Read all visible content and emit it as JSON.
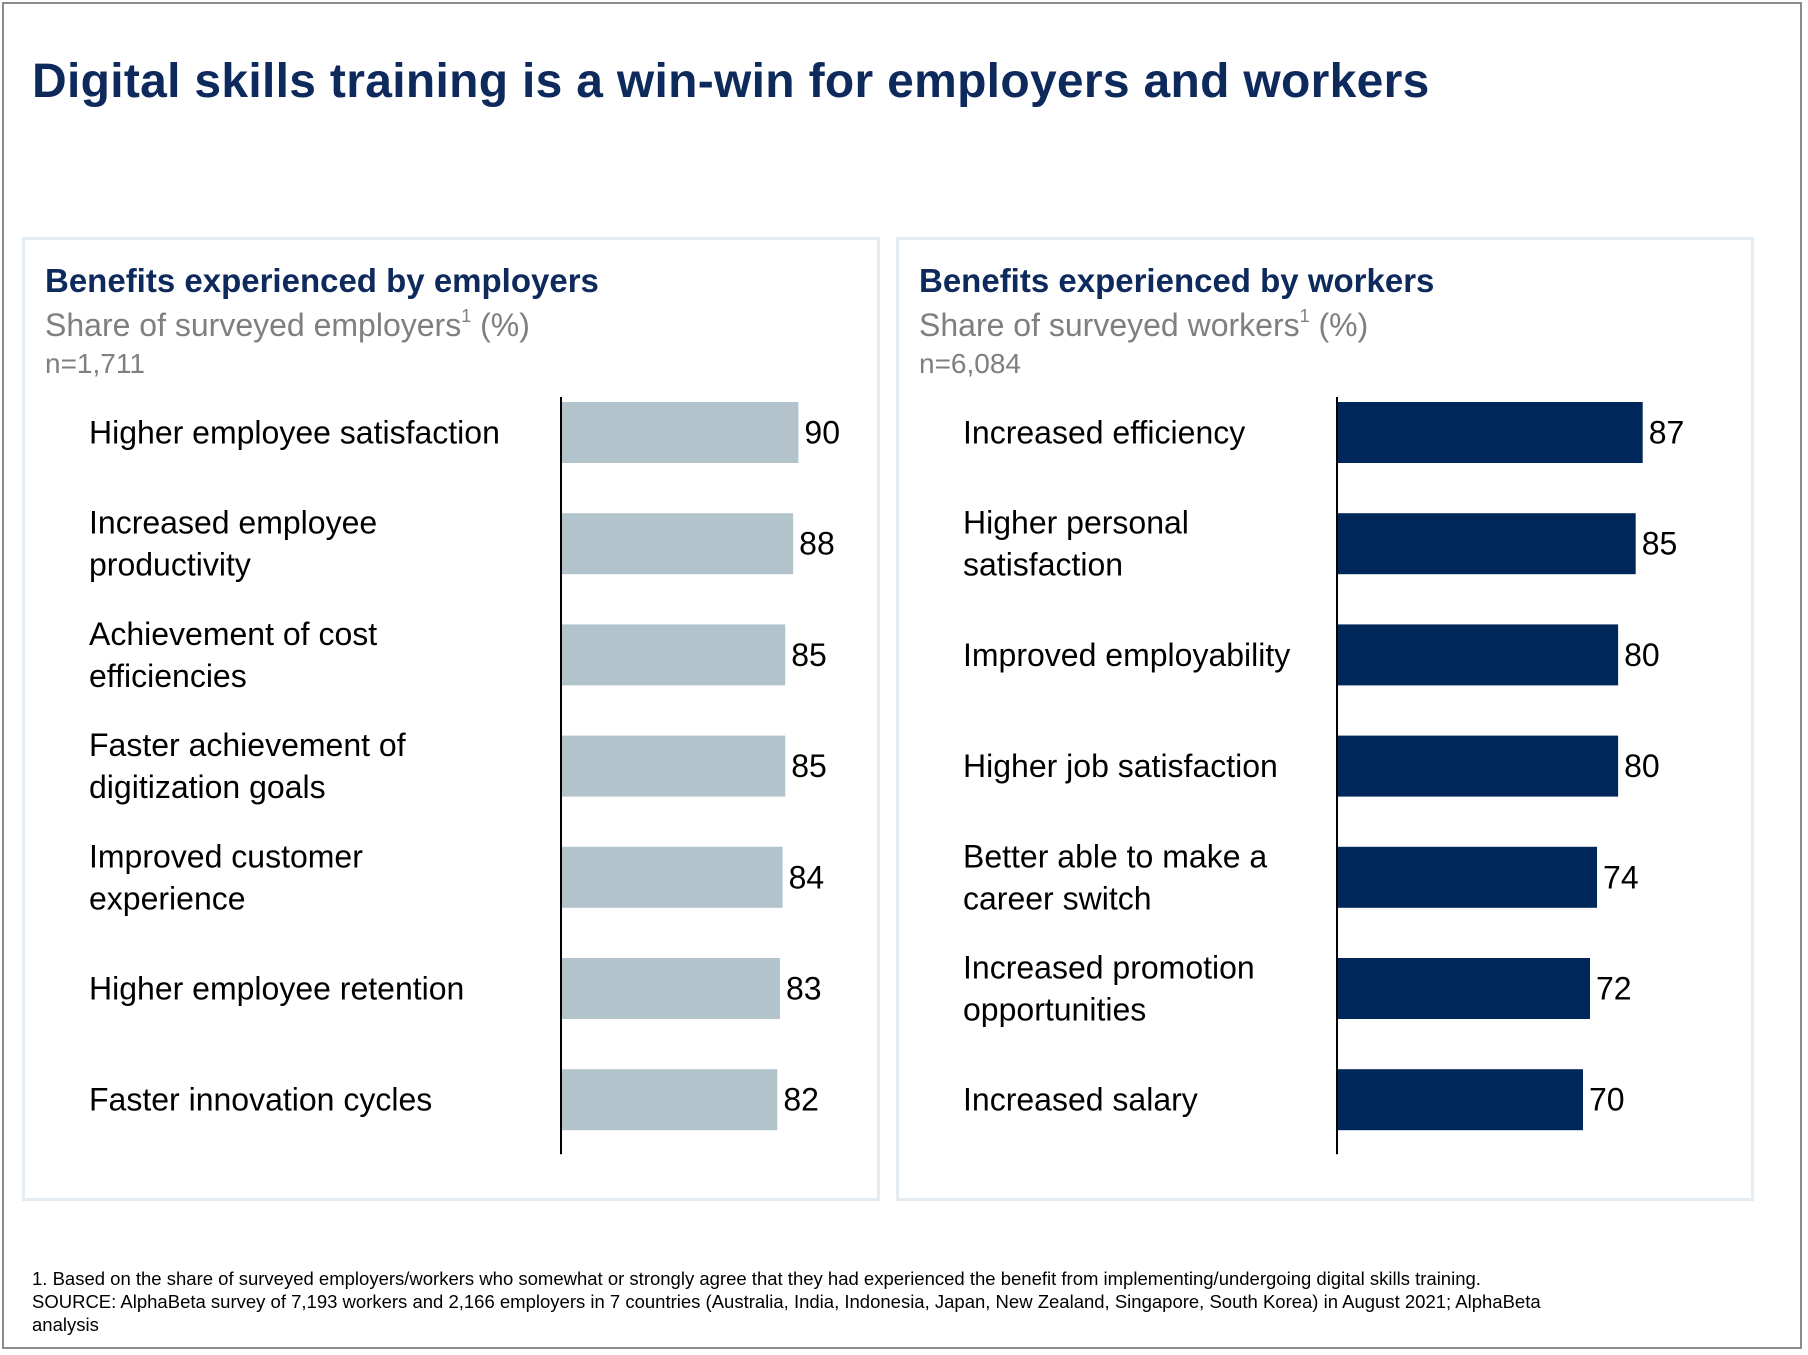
{
  "title": "Digital skills training is a win-win for employers and workers",
  "chart_data": [
    {
      "type": "bar",
      "orientation": "horizontal",
      "title": "Benefits experienced by employers",
      "subtitle": "Share of surveyed employers",
      "subtitle_sup": "1",
      "subtitle_unit": " (%)",
      "n_label": "n=1,711",
      "bar_color": "#b3c3cc",
      "xlim": [
        0,
        100
      ],
      "grid": false,
      "categories": [
        [
          "Higher employee satisfaction"
        ],
        [
          "Increased employee",
          "productivity"
        ],
        [
          "Achievement of cost",
          "efficiencies"
        ],
        [
          "Faster achievement of",
          "digitization goals"
        ],
        [
          "Improved customer",
          "experience"
        ],
        [
          "Higher employee retention"
        ],
        [
          "Faster innovation cycles"
        ]
      ],
      "values": [
        90,
        88,
        85,
        85,
        84,
        83,
        82
      ]
    },
    {
      "type": "bar",
      "orientation": "horizontal",
      "title": "Benefits experienced by workers",
      "subtitle": "Share of surveyed workers",
      "subtitle_sup": "1",
      "subtitle_unit": " (%)",
      "n_label": "n=6,084",
      "bar_color": "#00275a",
      "xlim": [
        0,
        100
      ],
      "grid": false,
      "categories": [
        [
          "Increased efficiency"
        ],
        [
          "Higher personal",
          "satisfaction"
        ],
        [
          "Improved employability"
        ],
        [
          "Higher job satisfaction"
        ],
        [
          "Better able to make a",
          "career switch"
        ],
        [
          "Increased promotion",
          "opportunities"
        ],
        [
          "Increased salary"
        ]
      ],
      "values": [
        87,
        85,
        80,
        80,
        74,
        72,
        70
      ]
    }
  ],
  "footnotes": [
    "1. Based on the share of surveyed employers/workers who somewhat or strongly agree that they had experienced the benefit from implementing/undergoing digital skills training.",
    "SOURCE: AlphaBeta survey of 7,193 workers and 2,166 employers in 7 countries (Australia, India, Indonesia, Japan, New Zealand, Singapore, South Korea) in August 2021; AlphaBeta",
    "analysis"
  ]
}
